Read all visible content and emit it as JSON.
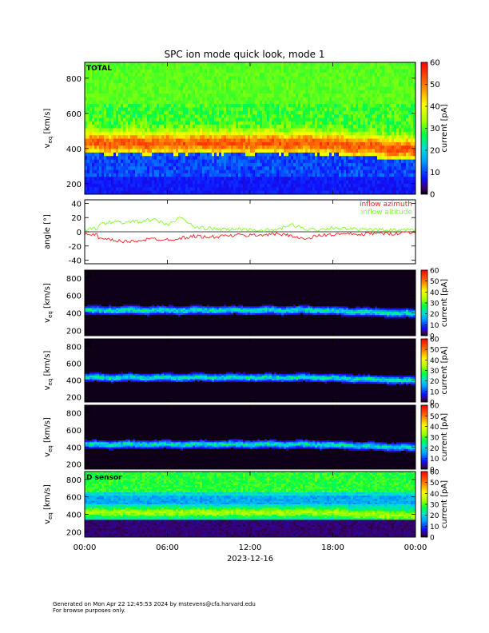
{
  "title": "SPC ion mode quick look, mode 1",
  "date_label": "2023-12-16",
  "x_ticks": [
    "00:00",
    "06:00",
    "12:00",
    "18:00",
    "00:00"
  ],
  "footer": {
    "line1": "Generated on Mon Apr 22 12:45:53 2024 by mstevens@cfa.harvard.edu",
    "line2": "For browse purposes only."
  },
  "colorbar_label": "current [pA]",
  "chart_data": [
    {
      "type": "heatmap",
      "panel": "TOTAL",
      "panel_label": "TOTAL",
      "ylabel_main": "v",
      "ylabel_sub": "eq",
      "ylabel_units": " [km/s]",
      "ylim": [
        140,
        890
      ],
      "yticks": [
        200,
        400,
        600,
        800
      ],
      "clim": [
        0,
        60
      ],
      "cticks": [
        0,
        10,
        20,
        30,
        40,
        50,
        60
      ],
      "clabel": "current [pA]",
      "peak_velocity_kms": 420,
      "peak_current_pa": 45
    },
    {
      "type": "line",
      "panel": "angle",
      "ylabel": "angle [°]",
      "ylim": [
        -45,
        45
      ],
      "yticks": [
        -40,
        -20,
        0,
        20,
        40
      ],
      "series": [
        {
          "name": "inflow azimuth",
          "color": "#ff2020",
          "x": [
            0,
            1,
            2,
            3,
            4,
            5,
            6,
            7,
            8,
            9,
            10,
            11,
            12,
            13,
            14,
            15,
            16,
            17,
            18,
            19,
            20,
            21,
            22,
            23,
            24
          ],
          "y": [
            0,
            -10,
            -12,
            -14,
            -12,
            -10,
            -11,
            -9,
            -6,
            -8,
            -6,
            -5,
            -5,
            -4,
            -3,
            -5,
            -11,
            -5,
            -4,
            -3,
            -4,
            -2,
            -3,
            -1,
            -1
          ]
        },
        {
          "name": "inflow altitude",
          "color": "#80ff20",
          "x": [
            0,
            1,
            2,
            3,
            4,
            5,
            6,
            7,
            8,
            9,
            10,
            11,
            12,
            13,
            14,
            15,
            16,
            17,
            18,
            19,
            20,
            21,
            22,
            23,
            24
          ],
          "y": [
            0,
            10,
            14,
            13,
            15,
            17,
            10,
            20,
            6,
            5,
            3,
            4,
            3,
            2,
            3,
            10,
            4,
            3,
            6,
            4,
            3,
            3,
            2,
            2,
            2
          ]
        }
      ]
    },
    {
      "type": "heatmap",
      "panel": "A",
      "panel_label": "A",
      "ylabel_main": "v",
      "ylabel_sub": "eq",
      "ylabel_units": " [km/s]",
      "ylim": [
        140,
        890
      ],
      "yticks": [
        200,
        400,
        600,
        800
      ],
      "clim": [
        0,
        60
      ],
      "cticks": [
        0,
        10,
        20,
        30,
        40,
        50,
        60
      ],
      "clabel": "current [pA]"
    },
    {
      "type": "heatmap",
      "panel": "B",
      "panel_label": "B",
      "ylabel_main": "v",
      "ylabel_sub": "eq",
      "ylabel_units": " [km/s]",
      "ylim": [
        140,
        890
      ],
      "yticks": [
        200,
        400,
        600,
        800
      ],
      "clim": [
        0,
        60
      ],
      "cticks": [
        0,
        10,
        20,
        30,
        40,
        50,
        60
      ],
      "clabel": "current [pA]"
    },
    {
      "type": "heatmap",
      "panel": "C",
      "panel_label": "C",
      "ylabel_main": "v",
      "ylabel_sub": "eq",
      "ylabel_units": " [km/s]",
      "ylim": [
        140,
        890
      ],
      "yticks": [
        200,
        400,
        600,
        800
      ],
      "clim": [
        0,
        60
      ],
      "cticks": [
        0,
        10,
        20,
        30,
        40,
        50,
        60
      ],
      "clabel": "current [pA]"
    },
    {
      "type": "heatmap",
      "panel": "D sensor",
      "panel_label": "D sensor",
      "ylabel_main": "v",
      "ylabel_sub": "eq",
      "ylabel_units": " [km/s]",
      "ylim": [
        140,
        890
      ],
      "yticks": [
        200,
        400,
        600,
        800
      ],
      "clim": [
        0,
        60
      ],
      "cticks": [
        0,
        10,
        20,
        30,
        40,
        50,
        60
      ],
      "clabel": "current [pA]"
    }
  ]
}
